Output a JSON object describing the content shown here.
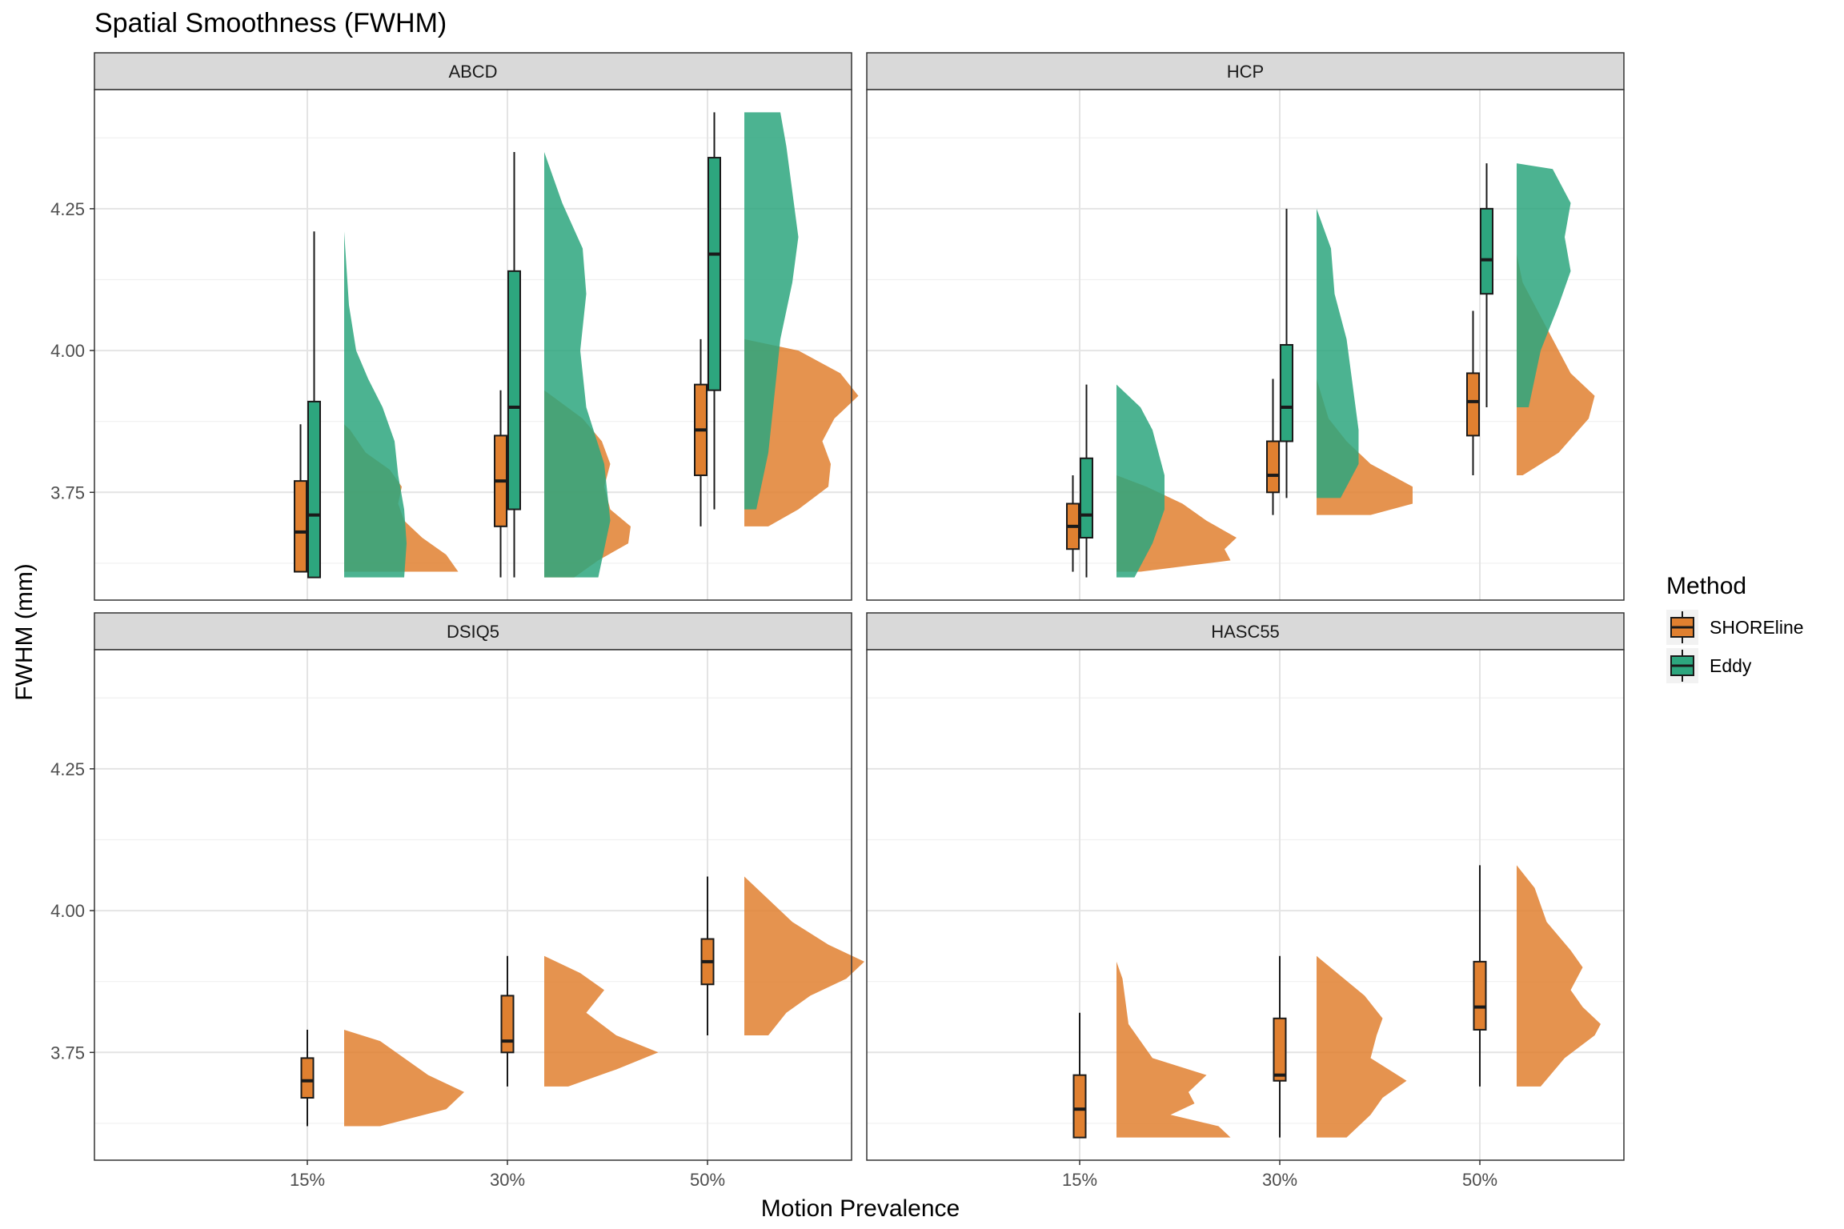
{
  "chart_data": {
    "type": "raincloud",
    "title": "Spatial Smoothness (FWHM)",
    "xlabel": "Motion Prevalence",
    "ylabel": "FWHM (mm)",
    "categories": [
      "15%",
      "30%",
      "50%"
    ],
    "ylim": [
      3.56,
      4.46
    ],
    "y_ticks": [
      3.75,
      4.0,
      4.25
    ],
    "y_tick_labels": [
      "3.75",
      "4.00",
      "4.25"
    ],
    "grid": true,
    "legend": {
      "title": "Method",
      "placement": "right",
      "entries": [
        {
          "name": "SHOREline",
          "color": "#E08030"
        },
        {
          "name": "Eddy",
          "color": "#2DA67E"
        }
      ]
    },
    "colors": {
      "SHOREline": "#E08030",
      "Eddy": "#2DA67E"
    },
    "panels": [
      {
        "label": "ABCD",
        "groups": [
          {
            "category": "15%",
            "method": "SHOREline",
            "box": {
              "min": 3.61,
              "q1": 3.61,
              "median": 3.68,
              "q3": 3.77,
              "max": 3.87
            },
            "density": [
              [
                3.61,
                0.95
              ],
              [
                3.64,
                0.85
              ],
              [
                3.67,
                0.65
              ],
              [
                3.7,
                0.5
              ],
              [
                3.73,
                0.45
              ],
              [
                3.76,
                0.48
              ],
              [
                3.79,
                0.38
              ],
              [
                3.82,
                0.18
              ],
              [
                3.86,
                0.05
              ],
              [
                3.87,
                0.0
              ]
            ]
          },
          {
            "category": "15%",
            "method": "Eddy",
            "box": {
              "min": 3.6,
              "q1": 3.6,
              "median": 3.71,
              "q3": 3.91,
              "max": 4.21
            },
            "density": [
              [
                3.6,
                0.5
              ],
              [
                3.66,
                0.52
              ],
              [
                3.72,
                0.5
              ],
              [
                3.78,
                0.45
              ],
              [
                3.84,
                0.42
              ],
              [
                3.9,
                0.32
              ],
              [
                3.95,
                0.2
              ],
              [
                4.0,
                0.1
              ],
              [
                4.08,
                0.04
              ],
              [
                4.21,
                0.0
              ]
            ]
          },
          {
            "category": "30%",
            "method": "SHOREline",
            "box": {
              "min": 3.6,
              "q1": 3.69,
              "median": 3.77,
              "q3": 3.85,
              "max": 3.93
            },
            "density": [
              [
                3.6,
                0.25
              ],
              [
                3.63,
                0.45
              ],
              [
                3.66,
                0.7
              ],
              [
                3.69,
                0.72
              ],
              [
                3.72,
                0.55
              ],
              [
                3.76,
                0.5
              ],
              [
                3.8,
                0.55
              ],
              [
                3.84,
                0.48
              ],
              [
                3.88,
                0.32
              ],
              [
                3.93,
                0.0
              ]
            ]
          },
          {
            "category": "30%",
            "method": "Eddy",
            "box": {
              "min": 3.6,
              "q1": 3.72,
              "median": 3.9,
              "q3": 4.14,
              "max": 4.35
            },
            "density": [
              [
                3.6,
                0.45
              ],
              [
                3.7,
                0.55
              ],
              [
                3.8,
                0.5
              ],
              [
                3.9,
                0.35
              ],
              [
                4.0,
                0.3
              ],
              [
                4.1,
                0.35
              ],
              [
                4.18,
                0.32
              ],
              [
                4.26,
                0.15
              ],
              [
                4.35,
                0.0
              ]
            ]
          },
          {
            "category": "50%",
            "method": "SHOREline",
            "box": {
              "min": 3.69,
              "q1": 3.78,
              "median": 3.86,
              "q3": 3.94,
              "max": 4.02
            },
            "density": [
              [
                3.69,
                0.2
              ],
              [
                3.72,
                0.45
              ],
              [
                3.76,
                0.7
              ],
              [
                3.8,
                0.72
              ],
              [
                3.84,
                0.65
              ],
              [
                3.88,
                0.75
              ],
              [
                3.92,
                0.95
              ],
              [
                3.96,
                0.8
              ],
              [
                4.0,
                0.45
              ],
              [
                4.02,
                0.0
              ]
            ]
          },
          {
            "category": "50%",
            "method": "Eddy",
            "box": {
              "min": 3.72,
              "q1": 3.93,
              "median": 4.17,
              "q3": 4.34,
              "max": 4.42
            },
            "density": [
              [
                3.72,
                0.1
              ],
              [
                3.82,
                0.2
              ],
              [
                3.92,
                0.25
              ],
              [
                4.02,
                0.3
              ],
              [
                4.12,
                0.4
              ],
              [
                4.2,
                0.45
              ],
              [
                4.28,
                0.4
              ],
              [
                4.36,
                0.35
              ],
              [
                4.42,
                0.3
              ]
            ]
          }
        ]
      },
      {
        "label": "HCP",
        "groups": [
          {
            "category": "15%",
            "method": "SHOREline",
            "box": {
              "min": 3.61,
              "q1": 3.65,
              "median": 3.69,
              "q3": 3.73,
              "max": 3.78
            },
            "density": [
              [
                3.61,
                0.2
              ],
              [
                3.63,
                0.95
              ],
              [
                3.65,
                0.9
              ],
              [
                3.67,
                1.0
              ],
              [
                3.7,
                0.75
              ],
              [
                3.73,
                0.55
              ],
              [
                3.76,
                0.25
              ],
              [
                3.78,
                0.0
              ]
            ]
          },
          {
            "category": "15%",
            "method": "Eddy",
            "box": {
              "min": 3.6,
              "q1": 3.67,
              "median": 3.71,
              "q3": 3.81,
              "max": 3.94
            },
            "density": [
              [
                3.6,
                0.15
              ],
              [
                3.66,
                0.3
              ],
              [
                3.72,
                0.4
              ],
              [
                3.78,
                0.4
              ],
              [
                3.82,
                0.35
              ],
              [
                3.86,
                0.3
              ],
              [
                3.9,
                0.2
              ],
              [
                3.94,
                0.0
              ]
            ]
          },
          {
            "category": "30%",
            "method": "SHOREline",
            "box": {
              "min": 3.71,
              "q1": 3.75,
              "median": 3.78,
              "q3": 3.84,
              "max": 3.95
            },
            "density": [
              [
                3.71,
                0.45
              ],
              [
                3.73,
                0.8
              ],
              [
                3.76,
                0.8
              ],
              [
                3.8,
                0.45
              ],
              [
                3.84,
                0.25
              ],
              [
                3.88,
                0.1
              ],
              [
                3.95,
                0.0
              ]
            ]
          },
          {
            "category": "30%",
            "method": "Eddy",
            "box": {
              "min": 3.74,
              "q1": 3.84,
              "median": 3.9,
              "q3": 4.01,
              "max": 4.25
            },
            "density": [
              [
                3.74,
                0.2
              ],
              [
                3.8,
                0.35
              ],
              [
                3.86,
                0.35
              ],
              [
                3.94,
                0.3
              ],
              [
                4.02,
                0.25
              ],
              [
                4.1,
                0.15
              ],
              [
                4.18,
                0.12
              ],
              [
                4.25,
                0.0
              ]
            ]
          },
          {
            "category": "50%",
            "method": "SHOREline",
            "box": {
              "min": 3.78,
              "q1": 3.85,
              "median": 3.91,
              "q3": 3.96,
              "max": 4.07
            },
            "density": [
              [
                3.78,
                0.05
              ],
              [
                3.82,
                0.35
              ],
              [
                3.88,
                0.6
              ],
              [
                3.92,
                0.65
              ],
              [
                3.96,
                0.45
              ],
              [
                4.0,
                0.35
              ],
              [
                4.06,
                0.2
              ],
              [
                4.12,
                0.05
              ],
              [
                4.17,
                0.0
              ]
            ]
          },
          {
            "category": "50%",
            "method": "Eddy",
            "box": {
              "min": 3.9,
              "q1": 4.1,
              "median": 4.16,
              "q3": 4.25,
              "max": 4.33
            },
            "density": [
              [
                3.9,
                0.1
              ],
              [
                4.0,
                0.2
              ],
              [
                4.08,
                0.35
              ],
              [
                4.14,
                0.45
              ],
              [
                4.2,
                0.4
              ],
              [
                4.26,
                0.45
              ],
              [
                4.32,
                0.3
              ],
              [
                4.33,
                0.0
              ]
            ]
          }
        ]
      },
      {
        "label": "DSIQ5",
        "groups": [
          {
            "category": "15%",
            "method": "SHOREline",
            "box": {
              "min": 3.62,
              "q1": 3.67,
              "median": 3.7,
              "q3": 3.74,
              "max": 3.79
            },
            "density": [
              [
                3.62,
                0.3
              ],
              [
                3.65,
                0.85
              ],
              [
                3.68,
                1.0
              ],
              [
                3.71,
                0.7
              ],
              [
                3.74,
                0.5
              ],
              [
                3.77,
                0.3
              ],
              [
                3.79,
                0.0
              ]
            ]
          },
          {
            "category": "30%",
            "method": "SHOREline",
            "box": {
              "min": 3.69,
              "q1": 3.75,
              "median": 3.77,
              "q3": 3.85,
              "max": 3.92
            },
            "density": [
              [
                3.69,
                0.2
              ],
              [
                3.72,
                0.6
              ],
              [
                3.75,
                0.95
              ],
              [
                3.78,
                0.6
              ],
              [
                3.82,
                0.35
              ],
              [
                3.86,
                0.5
              ],
              [
                3.89,
                0.3
              ],
              [
                3.92,
                0.0
              ]
            ]
          },
          {
            "category": "50%",
            "method": "SHOREline",
            "box": {
              "min": 3.78,
              "q1": 3.87,
              "median": 3.91,
              "q3": 3.95,
              "max": 4.06
            },
            "density": [
              [
                3.78,
                0.2
              ],
              [
                3.82,
                0.35
              ],
              [
                3.85,
                0.55
              ],
              [
                3.88,
                0.85
              ],
              [
                3.91,
                1.0
              ],
              [
                3.94,
                0.7
              ],
              [
                3.98,
                0.4
              ],
              [
                4.02,
                0.2
              ],
              [
                4.06,
                0.0
              ]
            ]
          }
        ]
      },
      {
        "label": "HASC55",
        "groups": [
          {
            "category": "15%",
            "method": "SHOREline",
            "box": {
              "min": 3.6,
              "q1": 3.6,
              "median": 3.65,
              "q3": 3.71,
              "max": 3.82
            },
            "density": [
              [
                3.6,
                0.95
              ],
              [
                3.62,
                0.85
              ],
              [
                3.64,
                0.45
              ],
              [
                3.66,
                0.65
              ],
              [
                3.68,
                0.6
              ],
              [
                3.71,
                0.75
              ],
              [
                3.74,
                0.3
              ],
              [
                3.8,
                0.1
              ],
              [
                3.88,
                0.05
              ],
              [
                3.91,
                0.0
              ]
            ]
          },
          {
            "category": "30%",
            "method": "SHOREline",
            "box": {
              "min": 3.6,
              "q1": 3.7,
              "median": 3.71,
              "q3": 3.81,
              "max": 3.92
            },
            "density": [
              [
                3.6,
                0.25
              ],
              [
                3.64,
                0.45
              ],
              [
                3.67,
                0.55
              ],
              [
                3.7,
                0.75
              ],
              [
                3.74,
                0.45
              ],
              [
                3.78,
                0.5
              ],
              [
                3.81,
                0.55
              ],
              [
                3.85,
                0.4
              ],
              [
                3.92,
                0.0
              ]
            ]
          },
          {
            "category": "50%",
            "method": "SHOREline",
            "box": {
              "min": 3.69,
              "q1": 3.79,
              "median": 3.83,
              "q3": 3.91,
              "max": 4.08
            },
            "density": [
              [
                3.69,
                0.2
              ],
              [
                3.74,
                0.4
              ],
              [
                3.78,
                0.65
              ],
              [
                3.8,
                0.7
              ],
              [
                3.83,
                0.55
              ],
              [
                3.86,
                0.45
              ],
              [
                3.9,
                0.55
              ],
              [
                3.93,
                0.45
              ],
              [
                3.98,
                0.25
              ],
              [
                4.04,
                0.15
              ],
              [
                4.08,
                0.0
              ]
            ]
          }
        ]
      }
    ]
  }
}
